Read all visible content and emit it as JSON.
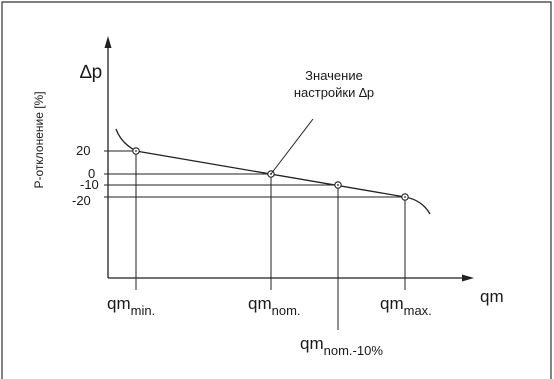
{
  "diagram": {
    "y_axis_title": "P-отклонение [%]",
    "y_axis_symbol": "∆p",
    "x_axis_symbol": "qm",
    "annotation": {
      "line1": "Значение",
      "line2": "настройки ∆p"
    },
    "y_ticks": [
      "20",
      "0",
      "-10",
      "-20"
    ],
    "x_markers": [
      {
        "base": "qm",
        "sub": "min."
      },
      {
        "base": "qm",
        "sub": "nom."
      },
      {
        "base": "qm",
        "sub": "nom.-10%"
      },
      {
        "base": "qm",
        "sub": "max."
      }
    ]
  }
}
